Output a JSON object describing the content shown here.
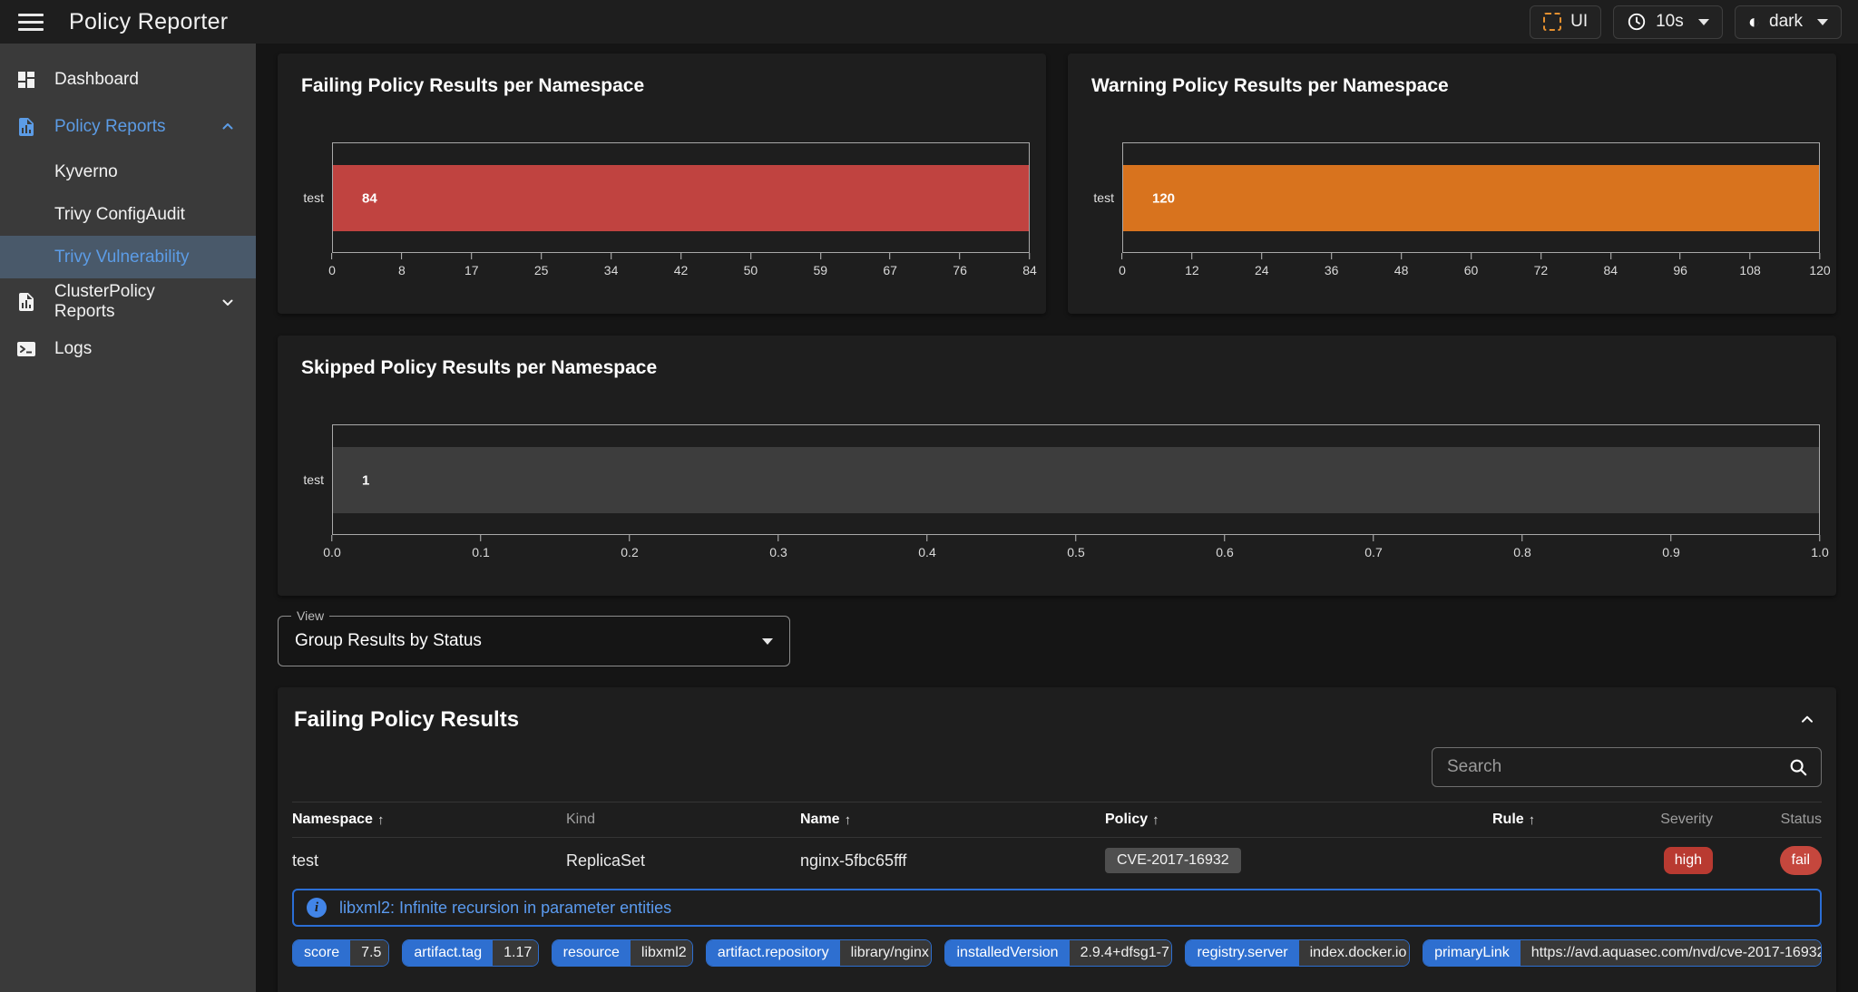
{
  "topbar": {
    "title": "Policy Reporter",
    "ui_button_label": "UI",
    "interval_value": "10s",
    "theme_value": "dark"
  },
  "sidebar": {
    "items": [
      {
        "label": "Dashboard",
        "icon": "dashboard-icon"
      },
      {
        "label": "Policy Reports",
        "icon": "file-chart-icon",
        "state": "expanded"
      },
      {
        "label": "Kyverno"
      },
      {
        "label": "Trivy ConfigAudit"
      },
      {
        "label": "Trivy Vulnerability",
        "state": "selected"
      },
      {
        "label": "ClusterPolicy Reports",
        "icon": "file-chart-icon",
        "state": "collapsed"
      },
      {
        "label": "Logs",
        "icon": "console-icon"
      }
    ]
  },
  "chart_data": [
    {
      "type": "bar",
      "orientation": "horizontal",
      "title": "Failing Policy Results per Namespace",
      "categories": [
        "test"
      ],
      "values": [
        84
      ],
      "xlim": [
        0,
        84
      ],
      "xticks": [
        "0",
        "8",
        "17",
        "25",
        "34",
        "42",
        "50",
        "59",
        "67",
        "76",
        "84"
      ],
      "bar_color": "#c04340",
      "grid": false,
      "value_labels": true
    },
    {
      "type": "bar",
      "orientation": "horizontal",
      "title": "Warning Policy Results per Namespace",
      "categories": [
        "test"
      ],
      "values": [
        120
      ],
      "xlim": [
        0,
        120
      ],
      "xticks": [
        "0",
        "12",
        "24",
        "36",
        "48",
        "60",
        "72",
        "84",
        "96",
        "108",
        "120"
      ],
      "bar_color": "#d8731e",
      "grid": false,
      "value_labels": true
    },
    {
      "type": "bar",
      "orientation": "horizontal",
      "title": "Skipped Policy Results per Namespace",
      "categories": [
        "test"
      ],
      "values": [
        1
      ],
      "xlim": [
        0,
        1
      ],
      "xticks": [
        "0.0",
        "0.1",
        "0.2",
        "0.3",
        "0.4",
        "0.5",
        "0.6",
        "0.7",
        "0.8",
        "0.9",
        "1.0"
      ],
      "bar_color": "#3d3d3d",
      "grid": false,
      "value_labels": true
    }
  ],
  "view_select": {
    "label": "View",
    "value": "Group Results by Status"
  },
  "results_section": {
    "title": "Failing Policy Results",
    "search_placeholder": "Search",
    "columns": [
      {
        "label": "Namespace",
        "sorted": true
      },
      {
        "label": "Kind",
        "sorted": false
      },
      {
        "label": "Name",
        "sorted": true
      },
      {
        "label": "Policy",
        "sorted": true
      },
      {
        "label": "Rule",
        "sorted": true
      },
      {
        "label": "Severity",
        "sorted": false
      },
      {
        "label": "Status",
        "sorted": false
      }
    ],
    "row": {
      "namespace": "test",
      "kind": "ReplicaSet",
      "name": "nginx-5fbc65fff",
      "policy": "CVE-2017-16932",
      "rule": "",
      "severity": "high",
      "status": "fail"
    },
    "details": {
      "message": "libxml2: Infinite recursion in parameter entities",
      "properties": [
        {
          "key": "score",
          "value": "7.5"
        },
        {
          "key": "artifact.tag",
          "value": "1.17"
        },
        {
          "key": "resource",
          "value": "libxml2"
        },
        {
          "key": "artifact.repository",
          "value": "library/nginx"
        },
        {
          "key": "installedVersion",
          "value": "2.9.4+dfsg1-7"
        },
        {
          "key": "registry.server",
          "value": "index.docker.io"
        },
        {
          "key": "primaryLink",
          "value": "https://avd.aquasec.com/nvd/cve-2017-16932"
        }
      ]
    }
  },
  "colors": {
    "sidebar_accent_blue": "#5c9ce6",
    "selected_item_bg": "#49596a",
    "failing_bar": "#c04340",
    "warning_bar": "#d8731e",
    "skipped_bar": "#3d3d3d",
    "severity_high_chip": "#b93a31",
    "status_fail_chip": "#c5473d",
    "property_chip_blue": "#2e6fd0",
    "info_link_blue": "#5b9bf0",
    "ui_icon_orange": "#e5902f"
  }
}
